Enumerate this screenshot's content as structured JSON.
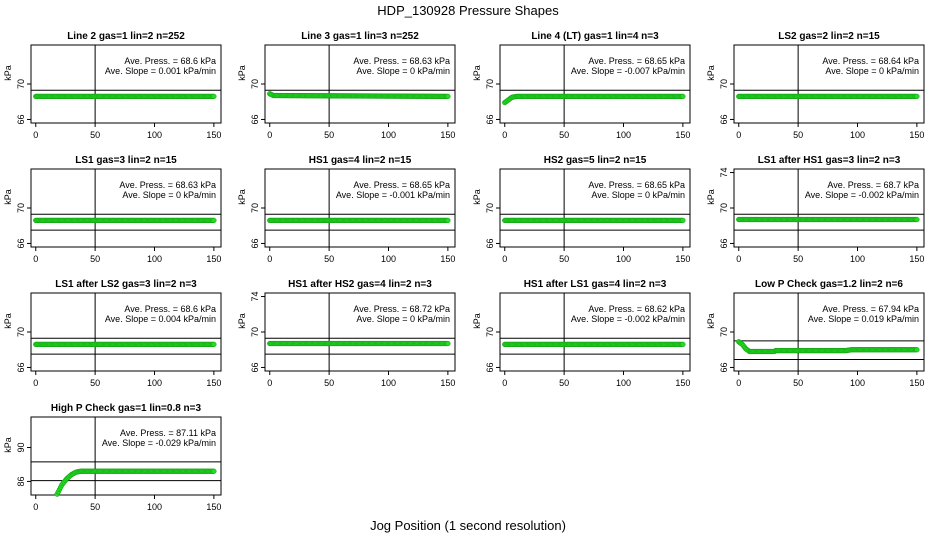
{
  "title": "HDP_130928  Pressure Shapes",
  "xlabel": "Jog Position (1 second resolution)",
  "colors": {
    "points": "#22dd22",
    "points_edge": "#119911",
    "axes": "#000000"
  },
  "chart_data": [
    {
      "type": "scatter",
      "title": "Line 2 gas=1 lin=2 n=252",
      "ylabel": "kPa",
      "xlim": [
        -4,
        156
      ],
      "ylim": [
        65.6,
        74.4
      ],
      "xticks": [
        0,
        50,
        100,
        150
      ],
      "yticks": [
        66,
        70
      ],
      "vline": 50,
      "hlines": [
        64.8,
        69.3
      ],
      "annotation": {
        "press": "Ave. Press. = 68.6  kPa",
        "slope": "Ave. Slope = 0.001  kPa/min"
      },
      "series": [
        {
          "x_start": 0,
          "x_end": 150,
          "points": [
            [
              0,
              68.6
            ],
            [
              150,
              68.6
            ]
          ]
        }
      ]
    },
    {
      "type": "scatter",
      "title": "Line 3 gas=1 lin=3 n=252",
      "ylabel": "kPa",
      "xlim": [
        -4,
        156
      ],
      "ylim": [
        65.6,
        74.4
      ],
      "xticks": [
        0,
        50,
        100,
        150
      ],
      "yticks": [
        66,
        70
      ],
      "vline": 50,
      "hlines": [
        64.8,
        69.3
      ],
      "annotation": {
        "press": "Ave. Press. = 68.63  kPa",
        "slope": "Ave. Slope = 0  kPa/min"
      },
      "series": [
        {
          "x_start": 0,
          "x_end": 150,
          "points": [
            [
              0,
              68.9
            ],
            [
              3,
              68.7
            ],
            [
              150,
              68.6
            ]
          ]
        }
      ]
    },
    {
      "type": "scatter",
      "title": "Line 4 (LT) gas=1 lin=4 n=3",
      "ylabel": "kPa",
      "xlim": [
        -4,
        156
      ],
      "ylim": [
        65.6,
        74.4
      ],
      "xticks": [
        0,
        50,
        100,
        150
      ],
      "yticks": [
        66,
        70
      ],
      "vline": 50,
      "hlines": [
        64.8,
        69.3
      ],
      "annotation": {
        "press": "Ave. Press. = 68.65  kPa",
        "slope": "Ave. Slope = -0.007  kPa/min"
      },
      "series": [
        {
          "x_start": 0,
          "x_end": 150,
          "points": [
            [
              0,
              67.9
            ],
            [
              3,
              68.2
            ],
            [
              6,
              68.5
            ],
            [
              10,
              68.6
            ],
            [
              150,
              68.6
            ]
          ]
        }
      ]
    },
    {
      "type": "scatter",
      "title": "LS2 gas=2 lin=2 n=15",
      "ylabel": "kPa",
      "xlim": [
        -4,
        156
      ],
      "ylim": [
        65.6,
        74.4
      ],
      "xticks": [
        0,
        50,
        100,
        150
      ],
      "yticks": [
        66,
        70
      ],
      "vline": 50,
      "hlines": [
        64.8,
        69.3
      ],
      "annotation": {
        "press": "Ave. Press. = 68.64  kPa",
        "slope": "Ave. Slope = 0  kPa/min"
      },
      "series": [
        {
          "x_start": 0,
          "x_end": 150,
          "points": [
            [
              0,
              68.6
            ],
            [
              150,
              68.6
            ]
          ]
        }
      ]
    },
    {
      "type": "scatter",
      "title": "LS1 gas=3 lin=2 n=15",
      "ylabel": "kPa",
      "xlim": [
        -4,
        156
      ],
      "ylim": [
        65.6,
        74.4
      ],
      "xticks": [
        0,
        50,
        100,
        150
      ],
      "yticks": [
        66,
        70
      ],
      "vline": 50,
      "hlines": [
        67.5,
        69.3
      ],
      "annotation": {
        "press": "Ave. Press. = 68.63  kPa",
        "slope": "Ave. Slope = 0  kPa/min"
      },
      "series": [
        {
          "x_start": 0,
          "x_end": 150,
          "points": [
            [
              0,
              68.6
            ],
            [
              150,
              68.6
            ]
          ]
        }
      ]
    },
    {
      "type": "scatter",
      "title": "HS1 gas=4 lin=2 n=15",
      "ylabel": "kPa",
      "xlim": [
        -4,
        156
      ],
      "ylim": [
        65.6,
        74.4
      ],
      "xticks": [
        0,
        50,
        100,
        150
      ],
      "yticks": [
        66,
        70
      ],
      "vline": 50,
      "hlines": [
        67.5,
        69.3
      ],
      "annotation": {
        "press": "Ave. Press. = 68.65  kPa",
        "slope": "Ave. Slope = -0.001  kPa/min"
      },
      "series": [
        {
          "x_start": 0,
          "x_end": 150,
          "points": [
            [
              0,
              68.6
            ],
            [
              150,
              68.6
            ]
          ]
        }
      ]
    },
    {
      "type": "scatter",
      "title": "HS2 gas=5 lin=2 n=15",
      "ylabel": "kPa",
      "xlim": [
        -4,
        156
      ],
      "ylim": [
        65.6,
        74.4
      ],
      "xticks": [
        0,
        50,
        100,
        150
      ],
      "yticks": [
        66,
        70
      ],
      "vline": 50,
      "hlines": [
        67.5,
        69.3
      ],
      "annotation": {
        "press": "Ave. Press. = 68.65  kPa",
        "slope": "Ave. Slope = 0  kPa/min"
      },
      "series": [
        {
          "x_start": 0,
          "x_end": 150,
          "points": [
            [
              0,
              68.6
            ],
            [
              150,
              68.6
            ]
          ]
        }
      ]
    },
    {
      "type": "scatter",
      "title": "LS1 after HS1 gas=3 lin=2 n=3",
      "ylabel": "kPa",
      "xlim": [
        -4,
        156
      ],
      "ylim": [
        65.6,
        74.4
      ],
      "xticks": [
        0,
        50,
        100,
        150
      ],
      "yticks": [
        66,
        70,
        74
      ],
      "vline": 50,
      "hlines": [
        67.5,
        69.3
      ],
      "annotation": {
        "press": "Ave. Press. = 68.7  kPa",
        "slope": "Ave. Slope = -0.002  kPa/min"
      },
      "series": [
        {
          "x_start": 0,
          "x_end": 150,
          "points": [
            [
              0,
              68.7
            ],
            [
              150,
              68.7
            ]
          ]
        }
      ]
    },
    {
      "type": "scatter",
      "title": "LS1 after LS2 gas=3 lin=2 n=3",
      "ylabel": "kPa",
      "xlim": [
        -4,
        156
      ],
      "ylim": [
        65.6,
        74.4
      ],
      "xticks": [
        0,
        50,
        100,
        150
      ],
      "yticks": [
        66,
        70
      ],
      "vline": 50,
      "hlines": [
        67.5,
        69.3
      ],
      "annotation": {
        "press": "Ave. Press. = 68.6  kPa",
        "slope": "Ave. Slope = 0.004  kPa/min"
      },
      "series": [
        {
          "x_start": 0,
          "x_end": 150,
          "points": [
            [
              0,
              68.6
            ],
            [
              150,
              68.6
            ]
          ]
        }
      ]
    },
    {
      "type": "scatter",
      "title": "HS1 after HS2 gas=4 lin=2 n=3",
      "ylabel": "kPa",
      "xlim": [
        -4,
        156
      ],
      "ylim": [
        65.6,
        74.4
      ],
      "xticks": [
        0,
        50,
        100,
        150
      ],
      "yticks": [
        66,
        70,
        74
      ],
      "vline": 50,
      "hlines": [
        67.5,
        69.3
      ],
      "annotation": {
        "press": "Ave. Press. = 68.72  kPa",
        "slope": "Ave. Slope = 0  kPa/min"
      },
      "series": [
        {
          "x_start": 0,
          "x_end": 150,
          "points": [
            [
              0,
              68.7
            ],
            [
              150,
              68.7
            ]
          ]
        }
      ]
    },
    {
      "type": "scatter",
      "title": "HS1 after LS1 gas=4 lin=2 n=3",
      "ylabel": "kPa",
      "xlim": [
        -4,
        156
      ],
      "ylim": [
        65.6,
        74.4
      ],
      "xticks": [
        0,
        50,
        100,
        150
      ],
      "yticks": [
        66,
        70
      ],
      "vline": 50,
      "hlines": [
        67.5,
        69.3
      ],
      "annotation": {
        "press": "Ave. Press. = 68.62  kPa",
        "slope": "Ave. Slope = -0.002  kPa/min"
      },
      "series": [
        {
          "x_start": 0,
          "x_end": 150,
          "points": [
            [
              0,
              68.6
            ],
            [
              150,
              68.6
            ]
          ]
        }
      ]
    },
    {
      "type": "scatter",
      "title": "Low P Check gas=1.2 lin=2 n=6",
      "ylabel": "kPa",
      "xlim": [
        -4,
        156
      ],
      "ylim": [
        65.6,
        74.4
      ],
      "xticks": [
        0,
        50,
        100,
        150
      ],
      "yticks": [
        66,
        70
      ],
      "vline": 50,
      "hlines": [
        66.9,
        69.0
      ],
      "annotation": {
        "press": "Ave. Press. = 67.94  kPa",
        "slope": "Ave. Slope = 0.019  kPa/min"
      },
      "series": [
        {
          "x_start": 0,
          "x_end": 150,
          "points": [
            [
              0,
              68.9
            ],
            [
              3,
              68.6
            ],
            [
              6,
              68.1
            ],
            [
              9,
              67.8
            ],
            [
              30,
              67.8
            ],
            [
              31,
              67.9
            ],
            [
              90,
              67.9
            ],
            [
              95,
              68.0
            ],
            [
              150,
              68.0
            ]
          ]
        }
      ]
    },
    {
      "type": "scatter",
      "title": "High P Check gas=1 lin=0.8 n=3",
      "ylabel": "kPa",
      "xlim": [
        -4,
        156
      ],
      "ylim": [
        84.4,
        93.6
      ],
      "xticks": [
        0,
        50,
        100,
        150
      ],
      "yticks": [
        86,
        90
      ],
      "vline": 50,
      "hlines": [
        86.1,
        88.3
      ],
      "annotation": {
        "press": "Ave. Press. = 87.11  kPa",
        "slope": "Ave. Slope = -0.029  kPa/min"
      },
      "series": [
        {
          "x_start": 18,
          "x_end": 150,
          "points": [
            [
              18,
              84.5
            ],
            [
              22,
              85.6
            ],
            [
              26,
              86.3
            ],
            [
              30,
              86.8
            ],
            [
              34,
              87.1
            ],
            [
              38,
              87.2
            ],
            [
              150,
              87.2
            ]
          ]
        }
      ]
    }
  ]
}
